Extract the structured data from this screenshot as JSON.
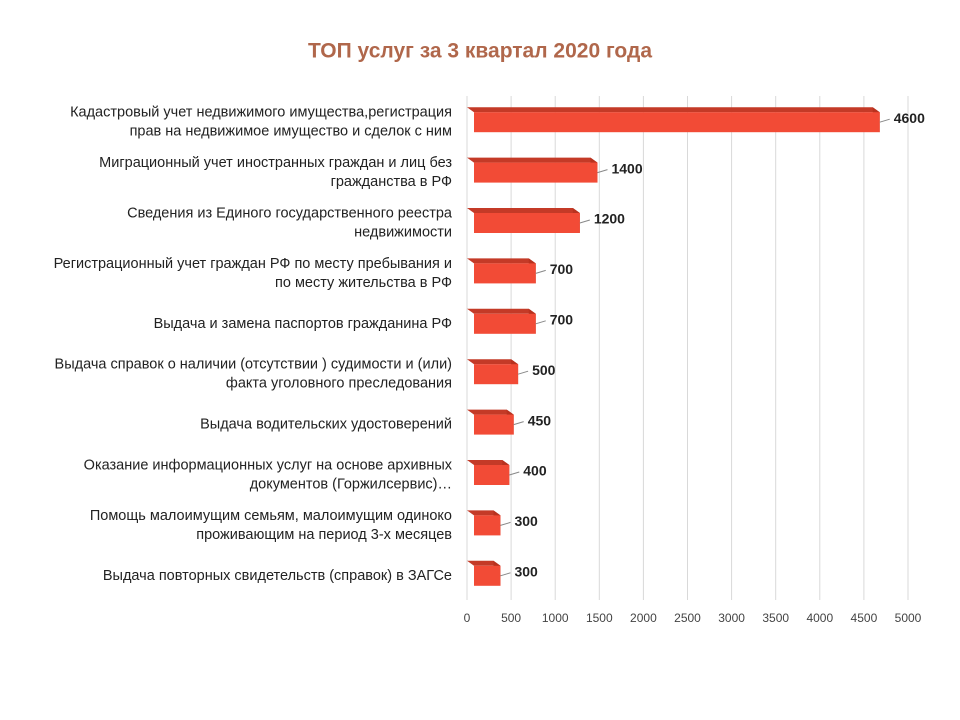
{
  "chart_data": {
    "type": "bar3d-horizontal",
    "title": "ТОП услуг за 3 квартал 2020 года",
    "categories": [
      [
        "Кадастровый учет недвижимого имущества,регистрация",
        "прав на недвижимое имущество  и сделок с ним"
      ],
      [
        "Миграционный  учет иностранных граждан и лиц без",
        "гражданства в РФ"
      ],
      [
        "Сведения из Единого государственного реестра",
        "недвижимости"
      ],
      [
        "Регистрационный  учет граждан РФ по месту пребывания и",
        "по месту жительства  в РФ"
      ],
      [
        "Выдача и замена паспортов гражданина  РФ"
      ],
      [
        "Выдача справок о наличии  (отсутствии ) судимости  и (или)",
        "факта уголовного преследования"
      ],
      [
        "Выдача водительских  удостоверений"
      ],
      [
        "Оказание  информационных  услуг  на основе архивных",
        "документов (Горжилсервис)…"
      ],
      [
        "Помощь малоимущим  семьям, малоимущим  одиноко",
        "проживающим   на период 3-х месяцев"
      ],
      [
        "Выдача повторных свидетельств  (справок) в ЗАГСе"
      ]
    ],
    "values": [
      4600,
      1400,
      1200,
      700,
      700,
      500,
      450,
      400,
      300,
      300
    ],
    "color": "#f24b36",
    "xlim": [
      0,
      5000
    ],
    "xticks": [
      0,
      500,
      1000,
      1500,
      2000,
      2500,
      3000,
      3500,
      4000,
      4500,
      5000
    ],
    "grid": true
  }
}
